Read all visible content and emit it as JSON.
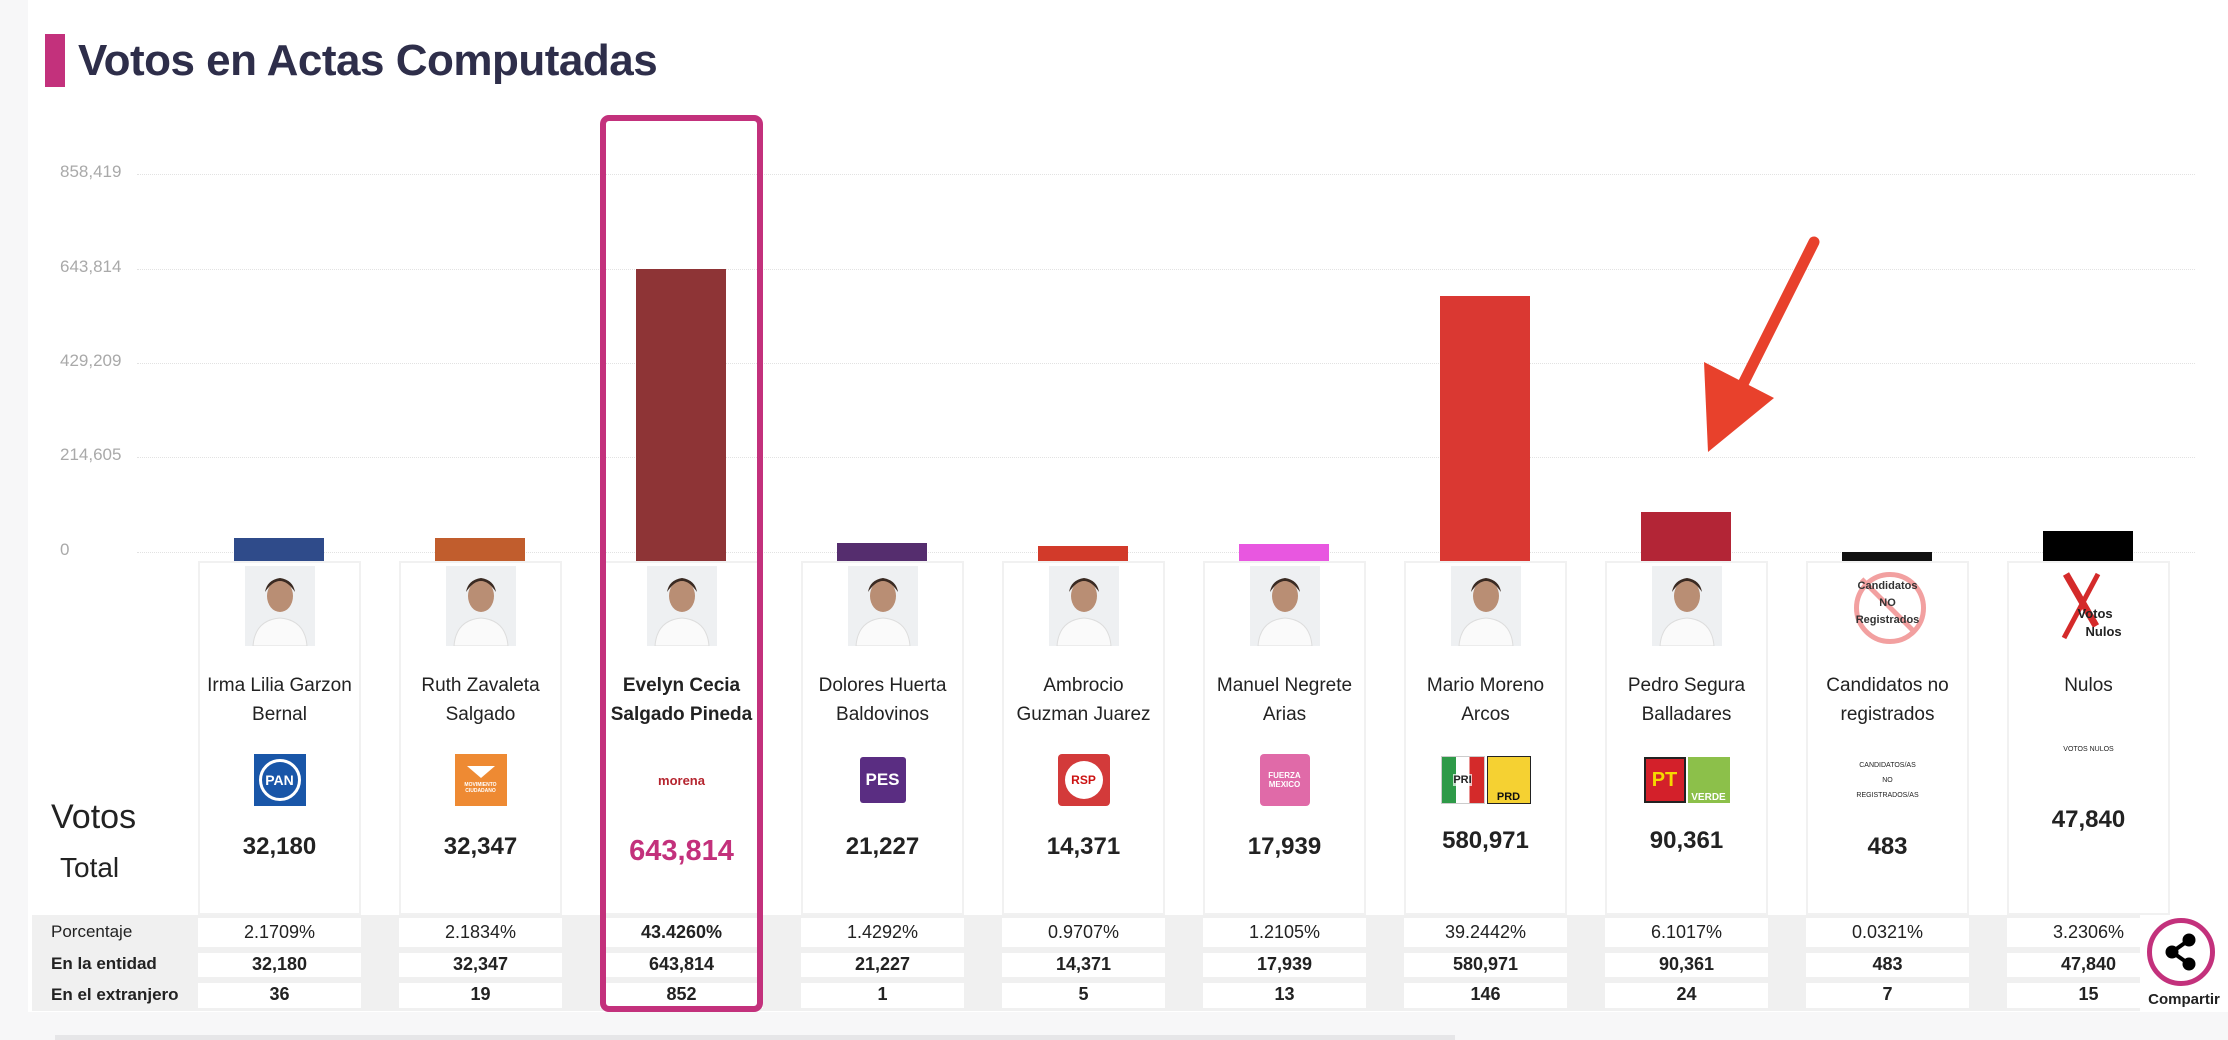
{
  "title": "Votos en Actas Computadas",
  "labels": {
    "votos": "Votos",
    "total": "Total",
    "porcentaje": "Porcentaje",
    "entidad": "En la entidad",
    "extranjero": "En el extranjero",
    "share": "Compartir"
  },
  "accent": "#c3317c",
  "arrow_color": "#e8412c",
  "chart_data": {
    "type": "bar",
    "title": "Votos en Actas Computadas",
    "ylim": [
      0,
      858419
    ],
    "yticks": [
      "0",
      "214,605",
      "429,209",
      "643,814",
      "858,419"
    ],
    "ytick_values": [
      0,
      214605,
      429209,
      643814,
      858419
    ],
    "grid": true,
    "categories": [
      "Irma Lilia Garzon Bernal",
      "Ruth Zavaleta Salgado",
      "Evelyn Cecia Salgado Pineda",
      "Dolores Huerta Baldovinos",
      "Ambrocio Guzman Juarez",
      "Manuel Negrete Arias",
      "Mario Moreno Arcos",
      "Pedro Segura Balladares",
      "Candidatos no registrados",
      "Nulos"
    ],
    "values": [
      32180,
      32347,
      643814,
      21227,
      14371,
      17939,
      580971,
      90361,
      483,
      47840
    ]
  },
  "candidates": [
    {
      "name_lines": [
        "Irma Lilia Garzon",
        "Bernal"
      ],
      "total": "32,180",
      "pct": "2.1709%",
      "entidad": "32,180",
      "extranjero": "36",
      "color": "#2f4b8a",
      "logo": {
        "kind": "pan",
        "texts": [
          "PAN"
        ]
      },
      "photo": "person"
    },
    {
      "name_lines": [
        "Ruth Zavaleta",
        "Salgado"
      ],
      "total": "32,347",
      "pct": "2.1834%",
      "entidad": "32,347",
      "extranjero": "19",
      "color": "#c15d2d",
      "logo": {
        "kind": "mc",
        "texts": [
          "MOVIMIENTO CIUDADANO"
        ]
      },
      "photo": "person"
    },
    {
      "name_lines": [
        "Evelyn Cecia",
        "Salgado Pineda"
      ],
      "total": "643,814",
      "pct": "43.4260%",
      "entidad": "643,814",
      "extranjero": "852",
      "color": "#8e3436",
      "logo": {
        "kind": "morena",
        "texts": [
          "morena"
        ]
      },
      "photo": "person",
      "highlight": true
    },
    {
      "name_lines": [
        "Dolores Huerta",
        "Baldovinos"
      ],
      "total": "21,227",
      "pct": "1.4292%",
      "entidad": "21,227",
      "extranjero": "1",
      "color": "#552d6e",
      "logo": {
        "kind": "pes",
        "texts": [
          "PES"
        ]
      },
      "photo": "person"
    },
    {
      "name_lines": [
        "Ambrocio",
        "Guzman Juarez"
      ],
      "total": "14,371",
      "pct": "0.9707%",
      "entidad": "14,371",
      "extranjero": "5",
      "color": "#d23a2a",
      "logo": {
        "kind": "rsp",
        "texts": [
          "RSP"
        ]
      },
      "photo": "person"
    },
    {
      "name_lines": [
        "Manuel Negrete",
        "Arias"
      ],
      "total": "17,939",
      "pct": "1.2105%",
      "entidad": "17,939",
      "extranjero": "13",
      "color": "#e857e0",
      "logo": {
        "kind": "fxm",
        "texts": [
          "FUERZA",
          "MEXICO"
        ]
      },
      "photo": "person"
    },
    {
      "name_lines": [
        "Mario Moreno",
        "Arcos"
      ],
      "total": "580,971",
      "pct": "39.2442%",
      "entidad": "580,971",
      "extranjero": "146",
      "color": "#da3832",
      "logo": {
        "kind": "pri-prd",
        "texts": [
          "PRI",
          "PRD"
        ]
      },
      "photo": "person"
    },
    {
      "name_lines": [
        "Pedro Segura",
        "Balladares"
      ],
      "total": "90,361",
      "pct": "6.1017%",
      "entidad": "90,361",
      "extranjero": "24",
      "color": "#b32536",
      "logo": {
        "kind": "pt-verde",
        "texts": [
          "PT",
          "VERDE"
        ]
      },
      "photo": "person"
    },
    {
      "name_lines": [
        "Candidatos no",
        "registrados"
      ],
      "total": "483",
      "pct": "0.0321%",
      "entidad": "483",
      "extranjero": "7",
      "color": "#111111",
      "logo": {
        "kind": "text",
        "texts": [
          "CANDIDATOS/AS",
          "NO",
          "REGISTRADOS/AS"
        ]
      },
      "photo": "cnr",
      "photo_texts": [
        "Candidatos",
        "NO",
        "Registrados"
      ]
    },
    {
      "name_lines": [
        "Nulos"
      ],
      "total": "47,840",
      "pct": "3.2306%",
      "entidad": "47,840",
      "extranjero": "15",
      "color": "#000000",
      "logo": {
        "kind": "text",
        "texts": [
          "VOTOS NULOS"
        ]
      },
      "photo": "nulos",
      "photo_texts": [
        "Votos",
        "Nulos"
      ]
    }
  ]
}
